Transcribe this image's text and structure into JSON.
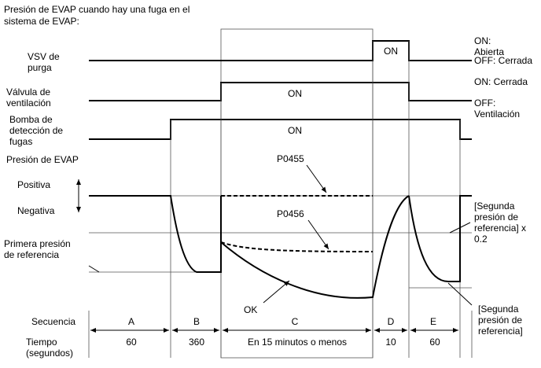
{
  "title": [
    "Presión de EVAP cuando hay una fuga en el",
    "sistema de EVAP:"
  ],
  "rows": {
    "vsv": {
      "label": [
        "VSV de",
        "purga"
      ],
      "on_label": [
        "ON:",
        "Abierta"
      ],
      "off_label": "OFF: Cerrada",
      "pulse": "ON"
    },
    "valve": {
      "label": [
        "Válvula de",
        "ventilación"
      ],
      "on_label": "ON: Cerrada",
      "off_label": [
        "OFF:",
        "Ventilación"
      ],
      "pulse": "ON"
    },
    "pump": {
      "label": [
        "Bomba de",
        "detección de",
        "fugas"
      ],
      "pulse": "ON"
    },
    "pressure": {
      "label": "Presión de EVAP",
      "positive": "Positiva",
      "negative": "Negativa",
      "first_ref": [
        "Primera presión",
        "de referencia"
      ],
      "second_ref_x": [
        "[Segunda",
        "presión de",
        "referencia] x",
        "0.2"
      ],
      "second_ref": [
        "[Segunda",
        "presión de",
        "referencia]"
      ],
      "curves": [
        "P0455",
        "P0456",
        "OK"
      ]
    }
  },
  "sequence": {
    "label": "Secuencia",
    "steps": [
      "A",
      "B",
      "C",
      "D",
      "E"
    ]
  },
  "time": {
    "label": [
      "Tiempo",
      "(segundos)"
    ],
    "values": [
      "60",
      "360",
      "En 15 minutos o menos",
      "10",
      "60"
    ]
  }
}
